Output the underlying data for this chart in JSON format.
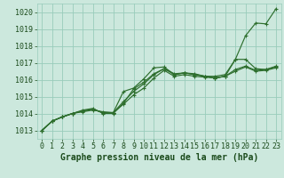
{
  "bg_color": "#cce8dd",
  "grid_color": "#99ccbb",
  "line_color": "#2d6e2d",
  "text_color": "#1a4a1a",
  "xlabel": "Graphe pression niveau de la mer (hPa)",
  "xlabel_fontsize": 7,
  "tick_fontsize": 6,
  "ylim": [
    1012.5,
    1020.5
  ],
  "xlim": [
    -0.5,
    23.5
  ],
  "xticks": [
    0,
    1,
    2,
    3,
    4,
    5,
    6,
    7,
    8,
    9,
    10,
    11,
    12,
    13,
    14,
    15,
    16,
    17,
    18,
    19,
    20,
    21,
    22,
    23
  ],
  "yticks": [
    1013,
    1014,
    1015,
    1016,
    1017,
    1018,
    1019,
    1020
  ],
  "series": [
    [
      1013.0,
      1013.55,
      1013.8,
      1014.0,
      1014.1,
      1014.2,
      1014.1,
      1014.05,
      1015.3,
      1015.5,
      1016.05,
      1016.7,
      1016.75,
      1016.3,
      1016.4,
      1016.35,
      1016.2,
      1016.2,
      1016.3,
      1017.2,
      1018.6,
      1019.35,
      1019.3,
      1020.2
    ],
    [
      1013.0,
      1013.55,
      1013.8,
      1014.0,
      1014.15,
      1014.25,
      1014.05,
      1014.05,
      1014.55,
      1015.1,
      1015.5,
      1016.1,
      1016.55,
      1016.2,
      1016.3,
      1016.2,
      1016.15,
      1016.1,
      1016.2,
      1017.2,
      1017.2,
      1016.65,
      1016.6,
      1016.75
    ],
    [
      1013.0,
      1013.55,
      1013.8,
      1014.0,
      1014.15,
      1014.25,
      1014.05,
      1014.05,
      1014.7,
      1015.3,
      1015.75,
      1016.3,
      1016.65,
      1016.3,
      1016.4,
      1016.3,
      1016.2,
      1016.1,
      1016.2,
      1016.6,
      1016.8,
      1016.55,
      1016.6,
      1016.8
    ],
    [
      1013.0,
      1013.55,
      1013.8,
      1014.0,
      1014.2,
      1014.3,
      1014.0,
      1014.0,
      1014.6,
      1015.45,
      1015.85,
      1016.35,
      1016.65,
      1016.35,
      1016.4,
      1016.3,
      1016.2,
      1016.1,
      1016.2,
      1016.5,
      1016.75,
      1016.5,
      1016.55,
      1016.7
    ]
  ]
}
